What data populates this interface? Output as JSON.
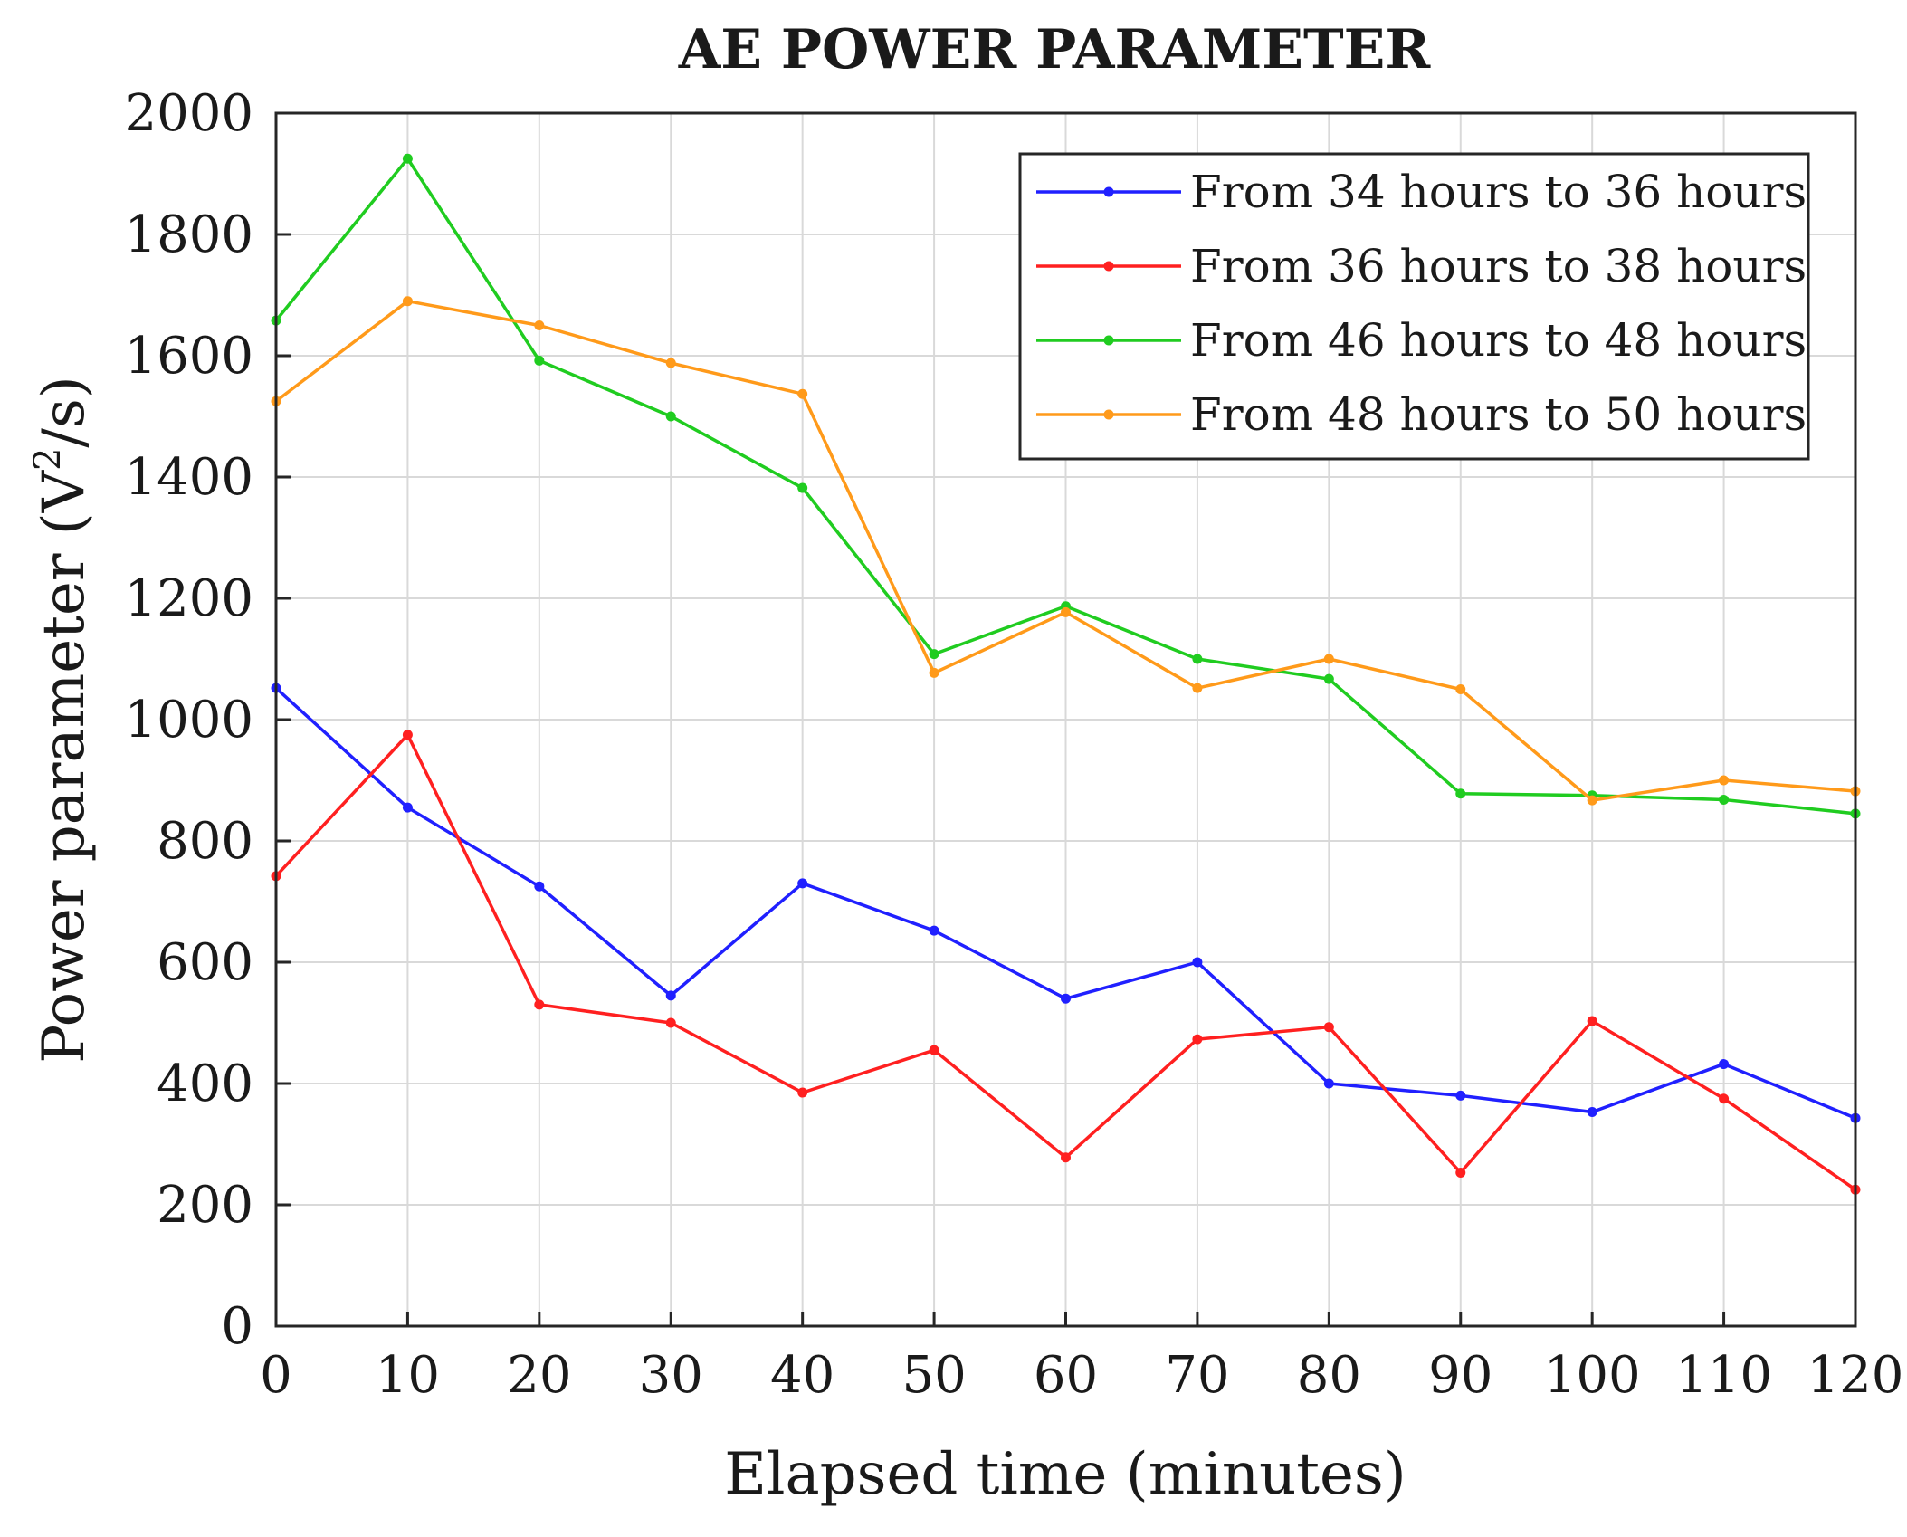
{
  "chart_data": {
    "type": "line",
    "title": "AE POWER PARAMETER",
    "xlabel": "Elapsed time (minutes)",
    "ylabel": "Power parameter (V²/s)",
    "ylabel_main": "Power parameter (V",
    "ylabel_sup": "2",
    "ylabel_tail": "/s)",
    "xlim": [
      0,
      120
    ],
    "ylim": [
      0,
      2000
    ],
    "x": [
      0,
      10,
      20,
      30,
      40,
      50,
      60,
      70,
      80,
      90,
      100,
      110,
      120
    ],
    "x_ticks": [
      "0",
      "10",
      "20",
      "30",
      "40",
      "50",
      "60",
      "70",
      "80",
      "90",
      "100",
      "110",
      "120"
    ],
    "y_ticks": [
      "0",
      "200",
      "400",
      "600",
      "800",
      "1000",
      "1200",
      "1400",
      "1600",
      "1800",
      "2000"
    ],
    "grid": true,
    "legend_position": "top-right",
    "series": [
      {
        "name": "From 34 hours to 36 hours",
        "color": "#2020ff",
        "values": [
          1052,
          855,
          725,
          545,
          730,
          652,
          540,
          600,
          400,
          380,
          353,
          432,
          343
        ]
      },
      {
        "name": "From 36 hours to 38 hours",
        "color": "#ff2020",
        "values": [
          742,
          975,
          530,
          500,
          385,
          455,
          278,
          473,
          493,
          253,
          503,
          375,
          225
        ]
      },
      {
        "name": "From 46 hours to 48 hours",
        "color": "#20cc20",
        "values": [
          1658,
          1925,
          1592,
          1500,
          1382,
          1108,
          1187,
          1100,
          1067,
          878,
          875,
          868,
          845
        ]
      },
      {
        "name": "From 48 hours to 50 hours",
        "color": "#ff9a1a",
        "values": [
          1525,
          1690,
          1650,
          1588,
          1537,
          1077,
          1177,
          1052,
          1100,
          1050,
          867,
          900,
          882
        ]
      }
    ]
  }
}
